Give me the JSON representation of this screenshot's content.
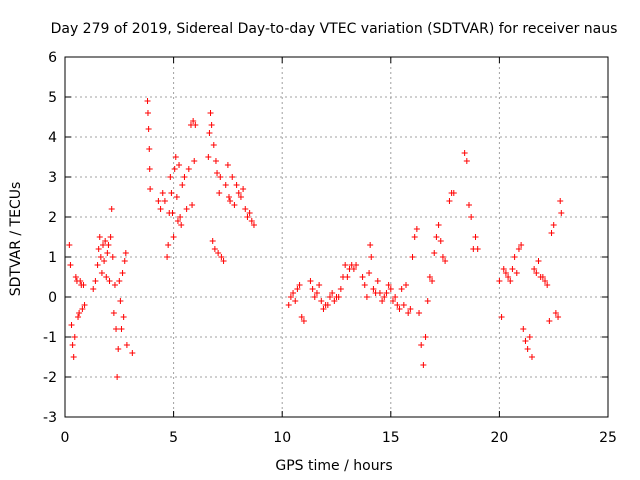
{
  "chart_data": {
    "type": "scatter",
    "title": "Day 279 of 2019, Sidereal Day-to-day VTEC variation (SDTVAR) for receiver naus",
    "xlabel": "GPS time / hours",
    "ylabel": "SDTVAR / TECUs",
    "xlim": [
      0,
      25
    ],
    "ylim": [
      -3,
      6
    ],
    "xticks": [
      "0",
      "5",
      "10",
      "15",
      "20",
      "25"
    ],
    "yticks": [
      "-3",
      "-2",
      "-1",
      "0",
      "1",
      "2",
      "3",
      "4",
      "5",
      "6"
    ],
    "grid": true,
    "marker": "+",
    "series": [
      {
        "name": "SDTVAR",
        "color": "#ff0000",
        "points": [
          [
            0.2,
            1.3
          ],
          [
            0.25,
            0.8
          ],
          [
            0.3,
            -0.7
          ],
          [
            0.35,
            -1.2
          ],
          [
            0.4,
            -1.5
          ],
          [
            0.45,
            -1.0
          ],
          [
            0.5,
            0.5
          ],
          [
            0.55,
            0.4
          ],
          [
            0.6,
            -0.5
          ],
          [
            0.65,
            -0.4
          ],
          [
            0.7,
            0.4
          ],
          [
            0.75,
            0.3
          ],
          [
            0.8,
            -0.3
          ],
          [
            0.85,
            0.3
          ],
          [
            0.9,
            -0.2
          ],
          [
            1.3,
            0.2
          ],
          [
            1.4,
            0.4
          ],
          [
            1.5,
            0.8
          ],
          [
            1.55,
            1.2
          ],
          [
            1.6,
            1.5
          ],
          [
            1.65,
            1.0
          ],
          [
            1.7,
            0.6
          ],
          [
            1.75,
            1.3
          ],
          [
            1.8,
            0.9
          ],
          [
            1.85,
            1.4
          ],
          [
            1.9,
            0.5
          ],
          [
            1.95,
            1.1
          ],
          [
            2.0,
            1.3
          ],
          [
            2.05,
            0.4
          ],
          [
            2.1,
            1.5
          ],
          [
            2.15,
            2.2
          ],
          [
            2.2,
            1.0
          ],
          [
            2.25,
            -0.4
          ],
          [
            2.3,
            0.3
          ],
          [
            2.35,
            -0.8
          ],
          [
            2.4,
            -2.0
          ],
          [
            2.45,
            -1.3
          ],
          [
            2.5,
            0.4
          ],
          [
            2.55,
            -0.1
          ],
          [
            2.6,
            -0.8
          ],
          [
            2.65,
            0.6
          ],
          [
            2.7,
            -0.5
          ],
          [
            2.75,
            0.9
          ],
          [
            2.8,
            1.1
          ],
          [
            2.85,
            -1.2
          ],
          [
            3.1,
            -1.4
          ],
          [
            3.8,
            4.9
          ],
          [
            3.82,
            4.6
          ],
          [
            3.85,
            4.2
          ],
          [
            3.88,
            3.7
          ],
          [
            3.9,
            3.2
          ],
          [
            3.92,
            2.7
          ],
          [
            4.3,
            2.4
          ],
          [
            4.4,
            2.2
          ],
          [
            4.5,
            2.6
          ],
          [
            4.6,
            2.4
          ],
          [
            4.7,
            1.0
          ],
          [
            4.75,
            1.3
          ],
          [
            4.8,
            2.1
          ],
          [
            4.85,
            3.0
          ],
          [
            4.9,
            2.6
          ],
          [
            4.95,
            2.1
          ],
          [
            5.0,
            1.5
          ],
          [
            5.05,
            3.2
          ],
          [
            5.1,
            3.5
          ],
          [
            5.15,
            2.5
          ],
          [
            5.2,
            1.9
          ],
          [
            5.25,
            3.3
          ],
          [
            5.3,
            2.0
          ],
          [
            5.35,
            1.8
          ],
          [
            5.4,
            2.8
          ],
          [
            5.5,
            3.0
          ],
          [
            5.6,
            2.2
          ],
          [
            5.7,
            3.2
          ],
          [
            5.8,
            4.3
          ],
          [
            5.85,
            2.3
          ],
          [
            5.9,
            4.4
          ],
          [
            5.95,
            3.4
          ],
          [
            6.0,
            4.3
          ],
          [
            6.6,
            3.5
          ],
          [
            6.65,
            4.1
          ],
          [
            6.7,
            4.6
          ],
          [
            6.75,
            4.3
          ],
          [
            6.8,
            1.4
          ],
          [
            6.85,
            3.8
          ],
          [
            6.9,
            1.2
          ],
          [
            6.95,
            3.4
          ],
          [
            7.0,
            3.1
          ],
          [
            7.05,
            1.1
          ],
          [
            7.1,
            2.6
          ],
          [
            7.15,
            3.0
          ],
          [
            7.2,
            1.0
          ],
          [
            7.3,
            0.9
          ],
          [
            7.4,
            2.8
          ],
          [
            7.5,
            3.3
          ],
          [
            7.55,
            2.5
          ],
          [
            7.6,
            2.4
          ],
          [
            7.7,
            3.0
          ],
          [
            7.8,
            2.3
          ],
          [
            7.9,
            2.8
          ],
          [
            8.0,
            2.6
          ],
          [
            8.1,
            2.5
          ],
          [
            8.2,
            2.7
          ],
          [
            8.3,
            2.2
          ],
          [
            8.4,
            2.0
          ],
          [
            8.5,
            2.1
          ],
          [
            8.6,
            1.9
          ],
          [
            8.7,
            1.8
          ],
          [
            10.3,
            -0.2
          ],
          [
            10.4,
            0.0
          ],
          [
            10.5,
            0.1
          ],
          [
            10.6,
            -0.1
          ],
          [
            10.7,
            0.2
          ],
          [
            10.8,
            0.3
          ],
          [
            10.9,
            -0.5
          ],
          [
            11.0,
            -0.6
          ],
          [
            11.3,
            0.4
          ],
          [
            11.4,
            0.2
          ],
          [
            11.5,
            0.0
          ],
          [
            11.6,
            0.1
          ],
          [
            11.7,
            0.3
          ],
          [
            11.8,
            -0.1
          ],
          [
            11.9,
            -0.3
          ],
          [
            12.0,
            -0.2
          ],
          [
            12.1,
            -0.2
          ],
          [
            12.2,
            0.0
          ],
          [
            12.3,
            0.1
          ],
          [
            12.4,
            -0.1
          ],
          [
            12.5,
            0.0
          ],
          [
            12.6,
            0.0
          ],
          [
            12.7,
            0.2
          ],
          [
            12.8,
            0.5
          ],
          [
            12.9,
            0.8
          ],
          [
            13.0,
            0.5
          ],
          [
            13.1,
            0.7
          ],
          [
            13.2,
            0.8
          ],
          [
            13.3,
            0.7
          ],
          [
            13.4,
            0.8
          ],
          [
            13.7,
            0.5
          ],
          [
            13.8,
            0.3
          ],
          [
            13.9,
            0.0
          ],
          [
            14.0,
            0.6
          ],
          [
            14.05,
            1.3
          ],
          [
            14.1,
            1.0
          ],
          [
            14.2,
            0.2
          ],
          [
            14.3,
            0.1
          ],
          [
            14.4,
            0.4
          ],
          [
            14.5,
            0.1
          ],
          [
            14.6,
            -0.1
          ],
          [
            14.7,
            0.0
          ],
          [
            14.8,
            0.1
          ],
          [
            14.9,
            0.3
          ],
          [
            15.0,
            0.2
          ],
          [
            15.1,
            -0.1
          ],
          [
            15.2,
            0.0
          ],
          [
            15.3,
            -0.2
          ],
          [
            15.4,
            -0.3
          ],
          [
            15.5,
            0.2
          ],
          [
            15.6,
            -0.2
          ],
          [
            15.7,
            0.3
          ],
          [
            15.8,
            -0.4
          ],
          [
            15.9,
            -0.3
          ],
          [
            16.0,
            1.0
          ],
          [
            16.1,
            1.5
          ],
          [
            16.2,
            1.7
          ],
          [
            16.3,
            -0.4
          ],
          [
            16.4,
            -1.2
          ],
          [
            16.5,
            -1.7
          ],
          [
            16.6,
            -1.0
          ],
          [
            16.7,
            -0.1
          ],
          [
            16.8,
            0.5
          ],
          [
            16.9,
            0.4
          ],
          [
            17.0,
            1.1
          ],
          [
            17.1,
            1.5
          ],
          [
            17.2,
            1.8
          ],
          [
            17.3,
            1.4
          ],
          [
            17.4,
            1.0
          ],
          [
            17.5,
            0.9
          ],
          [
            17.7,
            2.4
          ],
          [
            17.8,
            2.6
          ],
          [
            17.9,
            2.6
          ],
          [
            18.4,
            3.6
          ],
          [
            18.5,
            3.4
          ],
          [
            18.6,
            2.3
          ],
          [
            18.7,
            2.0
          ],
          [
            18.8,
            1.2
          ],
          [
            18.9,
            1.5
          ],
          [
            19.0,
            1.2
          ],
          [
            20.0,
            0.4
          ],
          [
            20.1,
            -0.5
          ],
          [
            20.2,
            0.7
          ],
          [
            20.3,
            0.6
          ],
          [
            20.4,
            0.5
          ],
          [
            20.5,
            0.4
          ],
          [
            20.6,
            0.7
          ],
          [
            20.7,
            1.0
          ],
          [
            20.8,
            0.6
          ],
          [
            20.9,
            1.2
          ],
          [
            21.0,
            1.3
          ],
          [
            21.1,
            -0.8
          ],
          [
            21.2,
            -1.1
          ],
          [
            21.3,
            -1.3
          ],
          [
            21.4,
            -1.0
          ],
          [
            21.5,
            -1.5
          ],
          [
            21.6,
            0.7
          ],
          [
            21.7,
            0.6
          ],
          [
            21.8,
            0.9
          ],
          [
            21.9,
            0.5
          ],
          [
            22.0,
            0.5
          ],
          [
            22.1,
            0.4
          ],
          [
            22.2,
            0.3
          ],
          [
            22.3,
            -0.6
          ],
          [
            22.4,
            1.6
          ],
          [
            22.5,
            1.8
          ],
          [
            22.6,
            -0.4
          ],
          [
            22.7,
            -0.5
          ],
          [
            22.8,
            2.4
          ],
          [
            22.85,
            2.1
          ]
        ]
      }
    ]
  }
}
